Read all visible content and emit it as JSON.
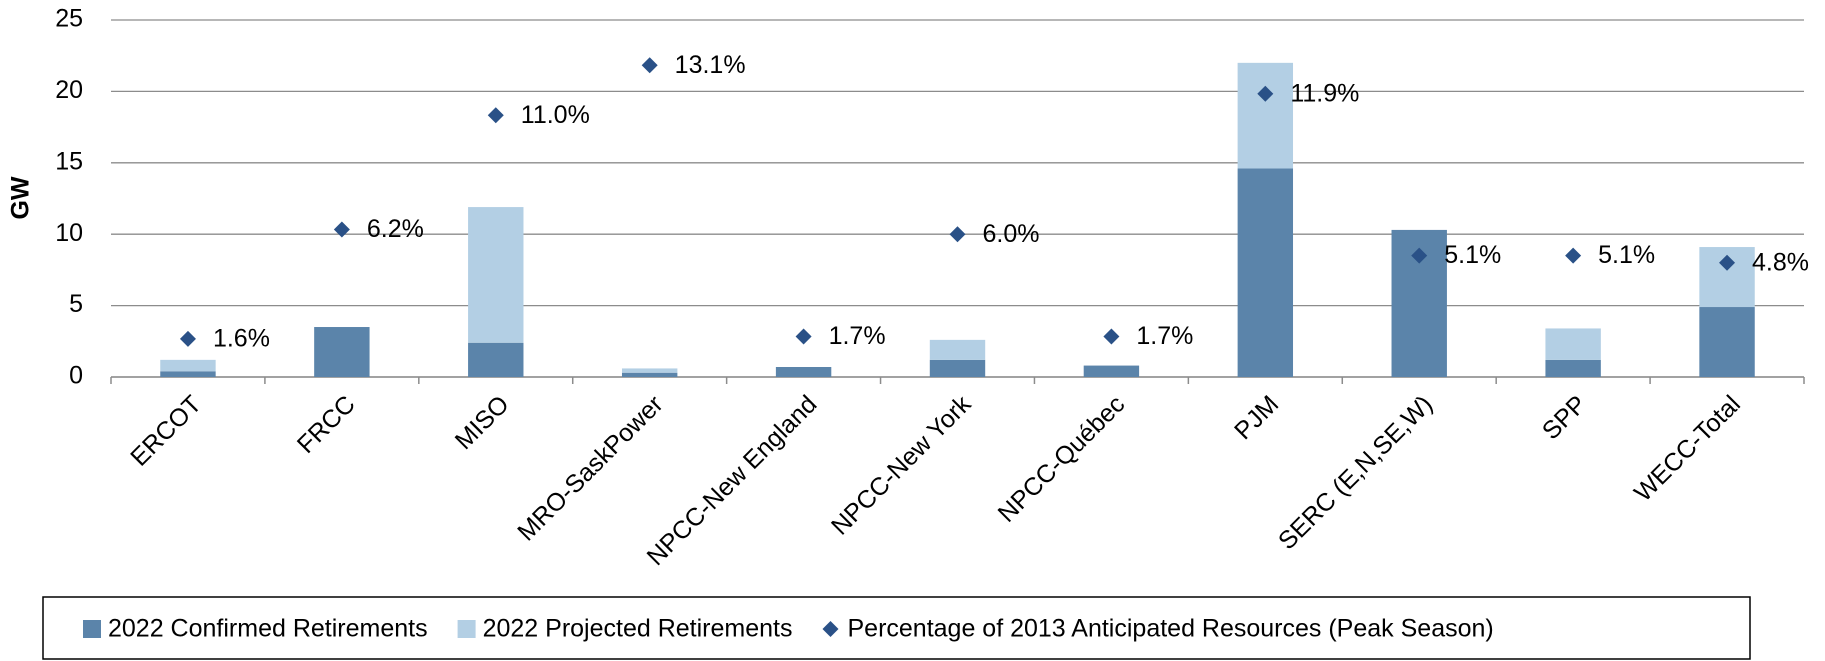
{
  "chart_data": {
    "type": "bar",
    "stacked": true,
    "y_label": "GW",
    "categories": [
      "ERCOT",
      "FRCC",
      "MISO",
      "MRO-SaskPower",
      "NPCC-New England",
      "NPCC-New York",
      "NPCC-Québec",
      "PJM",
      "SERC (E,N,SE,W)",
      "SPP",
      "WECC-Total"
    ],
    "series": [
      {
        "name": "2022 Confirmed Retirements",
        "color": "#5b84aa",
        "values": [
          0.4,
          3.5,
          2.4,
          0.3,
          0.7,
          1.2,
          0.8,
          14.6,
          10.3,
          1.2,
          4.9
        ]
      },
      {
        "name": "2022 Projected Retirements",
        "color": "#b3cfe4",
        "values": [
          0.8,
          0,
          9.5,
          0.3,
          0,
          1.4,
          0,
          7.4,
          0,
          2.2,
          4.2
        ]
      },
      {
        "name": "Percentage of 2013 Anticipated Resources (Peak Season)",
        "color": "#2a5187",
        "type": "scatter",
        "marker": "diamond",
        "axis": "y2",
        "values": [
          1.6,
          6.2,
          11.0,
          13.1,
          1.7,
          6.0,
          1.7,
          11.9,
          5.1,
          5.1,
          4.8
        ],
        "value_labels": [
          "1.6%",
          "6.2%",
          "11.0%",
          "13.1%",
          "1.7%",
          "6.0%",
          "1.7%",
          "11.9%",
          "5.1%",
          "5.1%",
          "4.8%"
        ]
      }
    ],
    "ylim": [
      0,
      25
    ],
    "yticks": [
      0,
      5,
      10,
      15,
      20,
      25
    ],
    "y2lim": [
      0,
      15
    ],
    "grid": true,
    "legend": "bottom"
  }
}
